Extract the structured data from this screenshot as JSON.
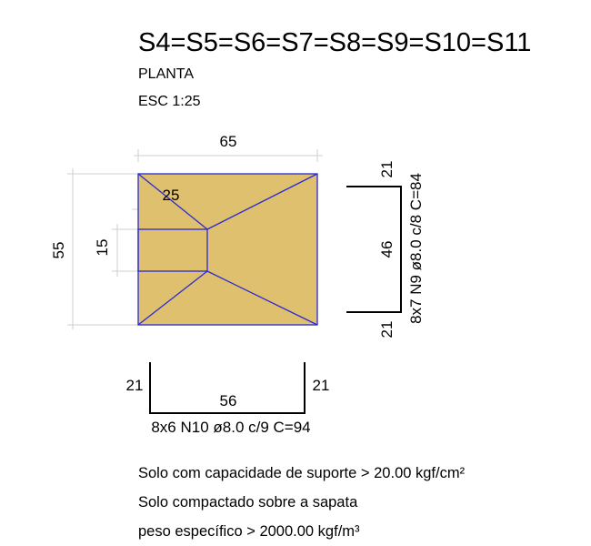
{
  "header": {
    "title": "S4=S5=S6=S7=S8=S9=S10=S11",
    "view": "PLANTA",
    "scale": "ESC 1:25"
  },
  "colors": {
    "footing_fill": "#dfc06f",
    "footing_edge": "#2a2ad0",
    "dimension_line": "#cfcfcf",
    "rebar": "#000000",
    "text": "#000000"
  },
  "plan": {
    "width_dim": "65",
    "height_dim": "55",
    "column_width_dim": "25",
    "column_height_dim": "15"
  },
  "rebar_right": {
    "top_leg": "21",
    "length": "46",
    "bottom_leg": "21",
    "label": "8x7 N9 ø8.0 c/8  C=84"
  },
  "rebar_bottom": {
    "left_leg": "21",
    "length": "56",
    "right_leg": "21",
    "label": "8x6 N10 ø8.0 c/9  C=94"
  },
  "notes": [
    "Solo com capacidade de suporte > 20.00 kgf/cm²",
    "Solo compactado sobre a sapata",
    "peso específico > 2000.00 kgf/m³"
  ]
}
